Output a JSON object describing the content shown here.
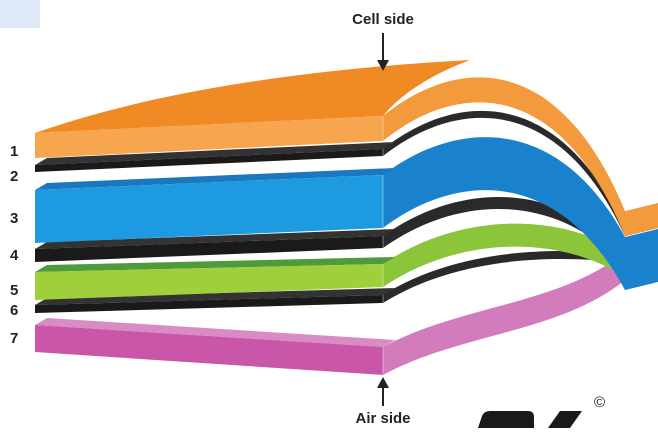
{
  "top_label": "Cell side",
  "bottom_label": "Air side",
  "layers": [
    {
      "label": "1"
    },
    {
      "label": "2"
    },
    {
      "label": "3"
    },
    {
      "label": "4"
    },
    {
      "label": "5"
    },
    {
      "label": "6"
    },
    {
      "label": "7"
    }
  ],
  "logo": {
    "symbol": "©"
  }
}
